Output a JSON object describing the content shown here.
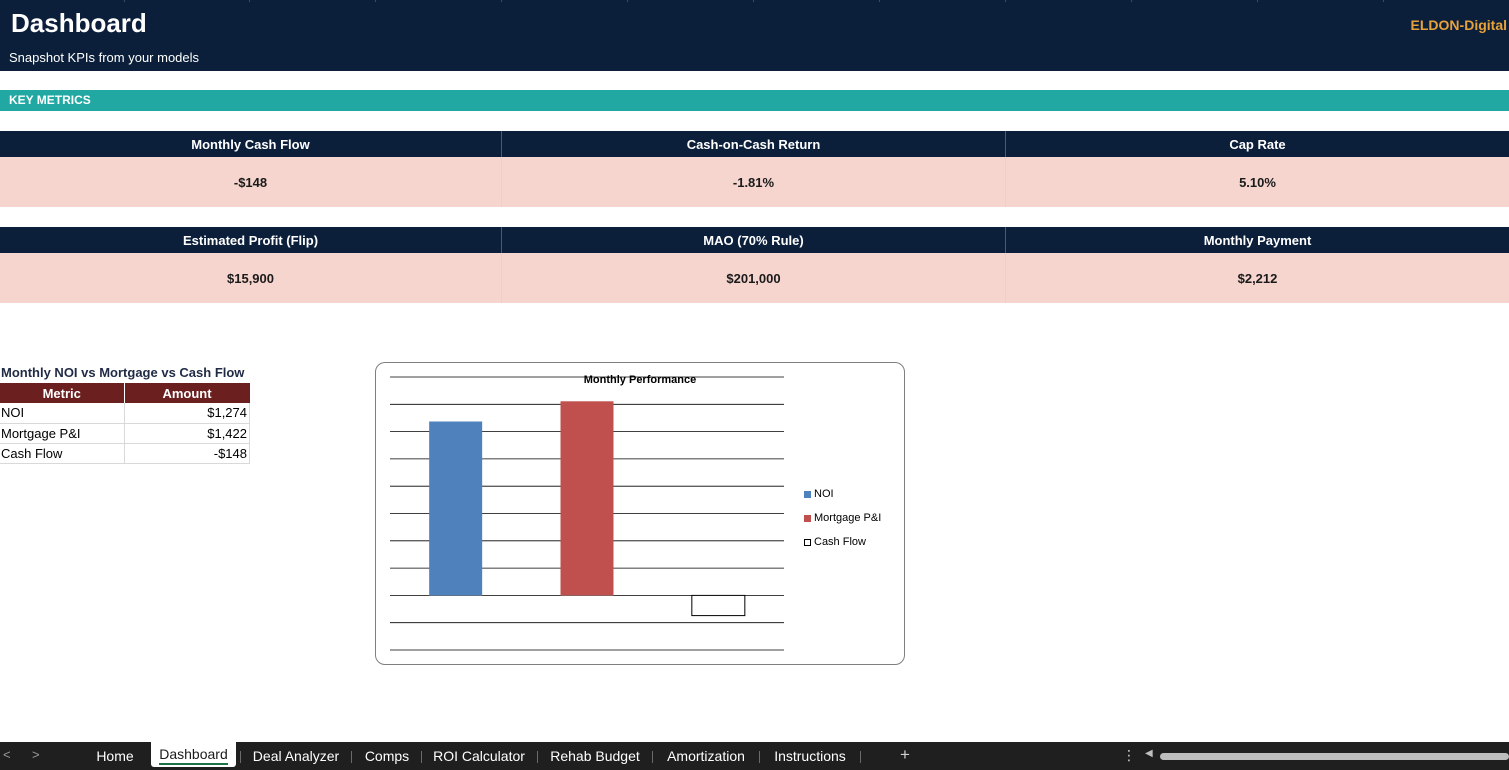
{
  "header": {
    "title": "Dashboard",
    "subtitle": "Snapshot KPIs from your models",
    "brand": "ELDON-Digital"
  },
  "section": {
    "label": "KEY METRICS"
  },
  "kpis_row1": [
    {
      "label": "Monthly Cash Flow",
      "value": "-$148"
    },
    {
      "label": "Cash-on-Cash Return",
      "value": "-1.81%"
    },
    {
      "label": "Cap Rate",
      "value": "5.10%"
    }
  ],
  "kpis_row2": [
    {
      "label": "Estimated Profit (Flip)",
      "value": "$15,900"
    },
    {
      "label": "MAO (70% Rule)",
      "value": "$201,000"
    },
    {
      "label": "Monthly Payment",
      "value": "$2,212"
    }
  ],
  "table": {
    "title": "Monthly NOI vs Mortgage vs Cash Flow",
    "headers": [
      "Metric",
      "Amount"
    ],
    "rows": [
      {
        "metric": "NOI",
        "amount": "$1,274"
      },
      {
        "metric": "Mortgage P&I",
        "amount": "$1,422"
      },
      {
        "metric": "Cash Flow",
        "amount": "-$148"
      }
    ]
  },
  "chart_data": {
    "type": "bar",
    "title": "Monthly Performance",
    "categories": [
      "NOI",
      "Mortgage P&I",
      "Cash Flow"
    ],
    "values": [
      1274,
      1422,
      -148
    ],
    "colors": [
      "#4f81bd",
      "#c0504d",
      "#ffffff"
    ],
    "ylim": [
      -400,
      1600
    ],
    "grid": true,
    "legend": "right",
    "xlabel": "",
    "ylabel": ""
  },
  "tabs": {
    "items": [
      "Home",
      "Dashboard",
      "Deal Analyzer",
      "Comps",
      "ROI Calculator",
      "Rehab Budget",
      "Amortization",
      "Instructions"
    ],
    "active": "Dashboard",
    "add_symbol": "+",
    "prev_symbol": "<",
    "next_symbol": ">",
    "more_symbol": "⋮"
  }
}
